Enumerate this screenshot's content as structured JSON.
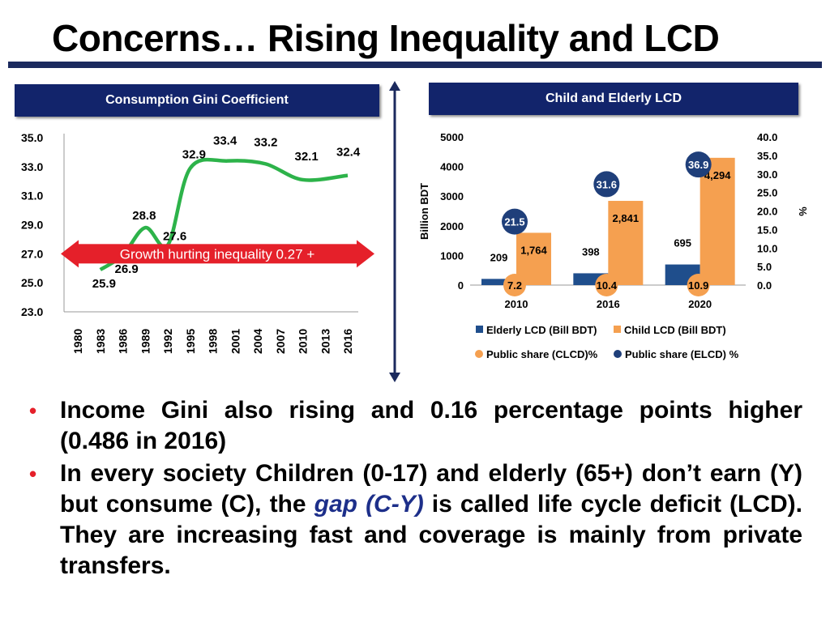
{
  "page": {
    "title": "Concerns… Rising Inequality and LCD"
  },
  "left_header": "Consumption Gini Coefficient",
  "right_header": "Child and Elderly LCD",
  "bullets": {
    "b1": "Income Gini also rising and 0.16 percentage points higher (0.486 in 2016)",
    "b2_pre": "In every society Children (0-17) and elderly (65+) don’t earn (Y) but consume (C), the ",
    "b2_gap": "gap (C-Y)",
    "b2_post": " is called life cycle deficit (LCD). They are increasing fast and coverage is mainly from private transfers."
  },
  "colors": {
    "navy": "#12246b",
    "green": "#2db34a",
    "red": "#e5202a",
    "orange": "#f5a050",
    "blue": "#1f4e8c",
    "circle_blue": "#1f3f7a"
  },
  "chart_data": [
    {
      "type": "line",
      "x": [
        "1980",
        "1983",
        "1986",
        "1989",
        "1992",
        "1995",
        "1998",
        "2001",
        "2004",
        "2007",
        "2010",
        "2013",
        "2016"
      ],
      "labeled_points": [
        {
          "x": "1983",
          "y": 25.9,
          "label": "25.9"
        },
        {
          "x": "1986",
          "y": 26.9,
          "label": "26.9"
        },
        {
          "x": "1989",
          "y": 28.8,
          "label": "28.8"
        },
        {
          "x": "1992",
          "y": 27.6,
          "label": "27.6"
        },
        {
          "x": "1995",
          "y": 32.9,
          "label": "32.9"
        },
        {
          "x": "2000",
          "y": 33.4,
          "label": "33.4"
        },
        {
          "x": "2005",
          "y": 33.2,
          "label": "33.2"
        },
        {
          "x": "2010",
          "y": 32.1,
          "label": "32.1"
        },
        {
          "x": "2016",
          "y": 32.4,
          "label": "32.4"
        }
      ],
      "ylim": [
        23,
        35
      ],
      "yticks": [
        "35.0",
        "33.0",
        "31.0",
        "29.0",
        "27.0",
        "25.0",
        "23.0"
      ],
      "annotation": "Growth hurting inequality 0.27 +"
    },
    {
      "type": "bar",
      "categories": [
        "2010",
        "2016",
        "2020"
      ],
      "series": [
        {
          "name": "Elderly LCD (Bill BDT)",
          "values": [
            209,
            398,
            695
          ],
          "labels": [
            "209",
            "398",
            "695"
          ]
        },
        {
          "name": "Child LCD (Bill BDT)",
          "values": [
            1764,
            2841,
            4294
          ],
          "labels": [
            "1,764",
            "2,841",
            "4,294"
          ]
        }
      ],
      "points": [
        {
          "name": "Public share (CLCD)%",
          "values": [
            7.2,
            10.4,
            10.9
          ],
          "labels": [
            "7.2",
            "10.4",
            "10.9"
          ]
        },
        {
          "name": "Public share (ELCD) %",
          "values": [
            21.5,
            31.6,
            36.9
          ],
          "labels": [
            "21.5",
            "31.6",
            "36.9"
          ]
        }
      ],
      "ylabel": "Billion BDT",
      "y2label": "%",
      "ylim": [
        0,
        5000
      ],
      "y2lim": [
        0,
        40
      ],
      "yticks": [
        "5000",
        "4000",
        "3000",
        "2000",
        "1000",
        "0"
      ],
      "y2ticks": [
        "40.0",
        "35.0",
        "30.0",
        "25.0",
        "20.0",
        "15.0",
        "10.0",
        "5.0",
        "0.0"
      ],
      "legend": "bottom"
    }
  ]
}
